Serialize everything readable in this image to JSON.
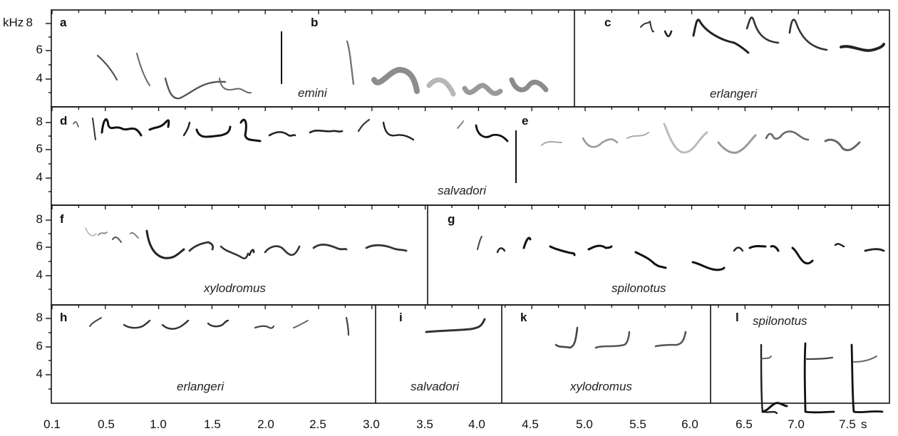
{
  "figure": {
    "y_unit": "kHz",
    "x_unit": "s",
    "y_ticks": [
      "8",
      "6",
      "4"
    ],
    "x_ticks": [
      "0.1",
      "0.5",
      "1.0",
      "1.5",
      "2.0",
      "2.5",
      "3.0",
      "3.5",
      "4.0",
      "4.5",
      "5.0",
      "5.5",
      "6.0",
      "6.5",
      "7.0",
      "7.5"
    ],
    "panels": [
      {
        "letter": "a",
        "species": "emini"
      },
      {
        "letter": "b",
        "species": ""
      },
      {
        "letter": "c",
        "species": "erlangeri"
      },
      {
        "letter": "d",
        "species": "salvadori"
      },
      {
        "letter": "e",
        "species": ""
      },
      {
        "letter": "f",
        "species": "xylodromus"
      },
      {
        "letter": "g",
        "species": "spilonotus"
      },
      {
        "letter": "h",
        "species": "erlangeri"
      },
      {
        "letter": "i",
        "species": "salvadori"
      },
      {
        "letter": "k",
        "species": "xylodromus"
      },
      {
        "letter": "l",
        "species": "spilonotus"
      }
    ]
  }
}
